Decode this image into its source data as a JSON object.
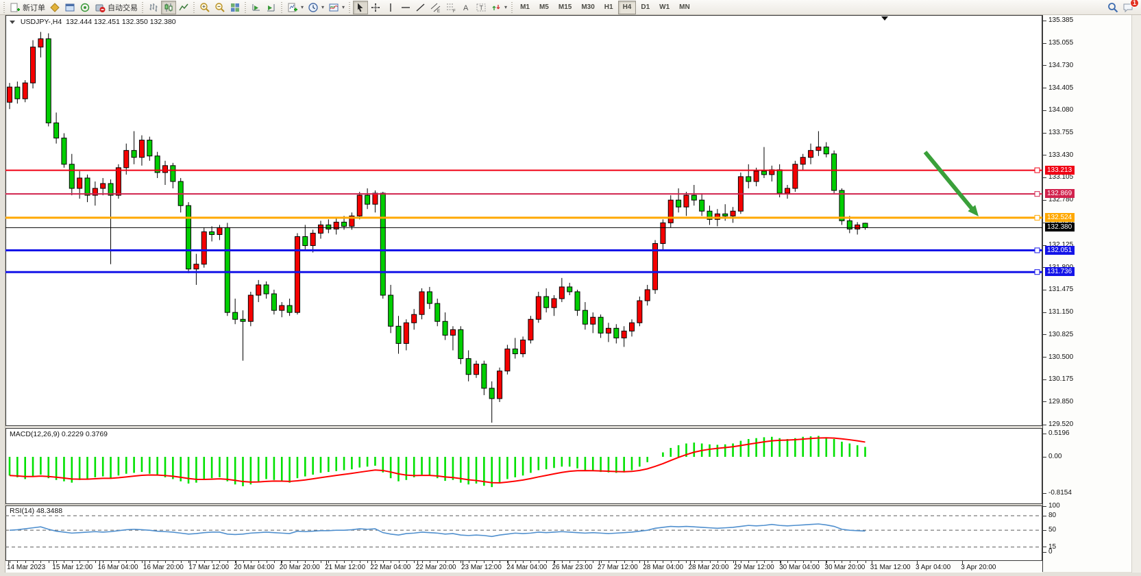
{
  "toolbar": {
    "new_order_label": "新订单",
    "autotrading_label": "自动交易",
    "timeframes": [
      "M1",
      "M5",
      "M15",
      "M30",
      "H1",
      "H4",
      "D1",
      "W1",
      "MN"
    ],
    "active_timeframe": "H4",
    "notification_badge": "1"
  },
  "chart": {
    "title_symbol": "USDJPY-,H4",
    "title_ohlc": "132.444 132.451 132.350 132.380"
  },
  "chart_data": {
    "type": "candlestick",
    "symbol": "USDJPY",
    "period": "H4",
    "y_axis_range": [
      129.52,
      135.385
    ],
    "y_ticks": [
      "135.385",
      "135.055",
      "134.730",
      "134.405",
      "134.080",
      "133.755",
      "133.430",
      "133.105",
      "132.780",
      "132.450",
      "132.125",
      "131.800",
      "131.475",
      "131.150",
      "130.825",
      "130.500",
      "130.175",
      "129.850",
      "129.520"
    ],
    "colors": {
      "up_candle": "#f50000",
      "down_candle": "#00ce00",
      "wick": "#000000",
      "macd_hist": "#00e100",
      "macd_signal": "#ff0000",
      "rsi_line": "#4f8fce",
      "arrow": "#3aa03a",
      "current_price_bg": "#000000"
    },
    "price_levels": [
      {
        "price": 133.213,
        "color": "#f00014",
        "width": 2
      },
      {
        "price": 132.869,
        "color": "#d1234d",
        "width": 2
      },
      {
        "price": 132.524,
        "color": "#ffa800",
        "width": 3
      },
      {
        "price": 132.051,
        "color": "#1414e8",
        "width": 3
      },
      {
        "price": 131.736,
        "color": "#1414e8",
        "width": 3
      }
    ],
    "current_price": {
      "price": 132.38,
      "label": "132.380"
    },
    "candles": [
      [
        134.2,
        134.48,
        134.1,
        134.42
      ],
      [
        134.42,
        134.5,
        134.18,
        134.25
      ],
      [
        134.25,
        134.52,
        134.2,
        134.48
      ],
      [
        134.48,
        135.1,
        134.4,
        135.0
      ],
      [
        135.0,
        135.22,
        134.85,
        135.12
      ],
      [
        135.12,
        135.2,
        133.85,
        133.9
      ],
      [
        133.9,
        134.05,
        133.6,
        133.68
      ],
      [
        133.68,
        133.75,
        133.25,
        133.3
      ],
      [
        133.3,
        133.45,
        132.85,
        132.95
      ],
      [
        132.95,
        133.2,
        132.8,
        133.1
      ],
      [
        133.1,
        133.15,
        132.75,
        132.85
      ],
      [
        132.85,
        133.05,
        132.7,
        132.95
      ],
      [
        132.95,
        133.1,
        132.85,
        133.02
      ],
      [
        133.02,
        133.08,
        131.85,
        132.85
      ],
      [
        132.85,
        133.3,
        132.8,
        133.25
      ],
      [
        133.25,
        133.6,
        133.15,
        133.5
      ],
      [
        133.5,
        133.78,
        133.3,
        133.4
      ],
      [
        133.4,
        133.72,
        133.28,
        133.65
      ],
      [
        133.65,
        133.7,
        133.35,
        133.42
      ],
      [
        133.42,
        133.48,
        133.1,
        133.18
      ],
      [
        133.18,
        133.35,
        133.0,
        133.28
      ],
      [
        133.28,
        133.32,
        132.95,
        133.05
      ],
      [
        133.05,
        133.1,
        132.6,
        132.7
      ],
      [
        132.7,
        132.75,
        131.72,
        131.78
      ],
      [
        131.78,
        132.0,
        131.55,
        131.85
      ],
      [
        131.85,
        132.38,
        131.8,
        132.32
      ],
      [
        132.32,
        132.4,
        132.18,
        132.28
      ],
      [
        132.28,
        132.42,
        132.2,
        132.38
      ],
      [
        132.38,
        132.45,
        131.1,
        131.15
      ],
      [
        131.15,
        131.35,
        130.98,
        131.05
      ],
      [
        131.05,
        131.18,
        130.45,
        131.02
      ],
      [
        131.02,
        131.45,
        130.95,
        131.4
      ],
      [
        131.4,
        131.62,
        131.3,
        131.55
      ],
      [
        131.55,
        131.6,
        131.35,
        131.42
      ],
      [
        131.42,
        131.48,
        131.12,
        131.18
      ],
      [
        131.18,
        131.3,
        131.08,
        131.25
      ],
      [
        131.25,
        131.35,
        131.1,
        131.15
      ],
      [
        131.15,
        132.3,
        131.12,
        132.25
      ],
      [
        132.25,
        132.42,
        132.05,
        132.12
      ],
      [
        132.12,
        132.35,
        132.02,
        132.3
      ],
      [
        132.3,
        132.48,
        132.22,
        132.42
      ],
      [
        132.42,
        132.5,
        132.3,
        132.36
      ],
      [
        132.36,
        132.52,
        132.28,
        132.46
      ],
      [
        132.46,
        132.55,
        132.35,
        132.4
      ],
      [
        132.4,
        132.6,
        132.35,
        132.55
      ],
      [
        132.55,
        132.9,
        132.5,
        132.85
      ],
      [
        132.85,
        132.95,
        132.65,
        132.72
      ],
      [
        132.72,
        132.92,
        132.6,
        132.88
      ],
      [
        132.88,
        132.9,
        131.35,
        131.4
      ],
      [
        131.4,
        131.55,
        130.85,
        130.95
      ],
      [
        130.95,
        131.1,
        130.55,
        130.7
      ],
      [
        130.7,
        131.05,
        130.6,
        131.0
      ],
      [
        131.0,
        131.2,
        130.9,
        131.12
      ],
      [
        131.12,
        131.5,
        131.05,
        131.45
      ],
      [
        131.45,
        131.52,
        131.2,
        131.28
      ],
      [
        131.28,
        131.35,
        130.95,
        131.02
      ],
      [
        131.02,
        131.15,
        130.75,
        130.82
      ],
      [
        130.82,
        130.95,
        130.6,
        130.9
      ],
      [
        130.9,
        130.95,
        130.4,
        130.48
      ],
      [
        130.48,
        130.6,
        130.15,
        130.25
      ],
      [
        130.25,
        130.45,
        130.2,
        130.4
      ],
      [
        130.4,
        130.45,
        129.95,
        130.05
      ],
      [
        130.05,
        130.15,
        129.55,
        129.9
      ],
      [
        129.9,
        130.35,
        129.85,
        130.3
      ],
      [
        130.3,
        130.68,
        130.25,
        130.62
      ],
      [
        130.62,
        130.78,
        130.48,
        130.55
      ],
      [
        130.55,
        130.8,
        130.5,
        130.75
      ],
      [
        130.75,
        131.1,
        130.7,
        131.05
      ],
      [
        131.05,
        131.45,
        131.0,
        131.38
      ],
      [
        131.38,
        131.5,
        131.15,
        131.22
      ],
      [
        131.22,
        131.4,
        131.1,
        131.35
      ],
      [
        131.35,
        131.65,
        131.3,
        131.52
      ],
      [
        131.52,
        131.58,
        131.4,
        131.45
      ],
      [
        131.45,
        131.48,
        131.1,
        131.18
      ],
      [
        131.18,
        131.3,
        130.9,
        130.98
      ],
      [
        130.98,
        131.15,
        130.85,
        131.08
      ],
      [
        131.08,
        131.12,
        130.78,
        130.85
      ],
      [
        130.85,
        131.0,
        130.72,
        130.92
      ],
      [
        130.92,
        130.98,
        130.7,
        130.78
      ],
      [
        130.78,
        130.95,
        130.65,
        130.88
      ],
      [
        130.88,
        131.05,
        130.8,
        131.0
      ],
      [
        131.0,
        131.38,
        130.95,
        131.32
      ],
      [
        131.32,
        131.55,
        131.25,
        131.48
      ],
      [
        131.48,
        132.2,
        131.42,
        132.15
      ],
      [
        132.15,
        132.5,
        132.05,
        132.45
      ],
      [
        132.45,
        132.85,
        132.38,
        132.78
      ],
      [
        132.78,
        132.95,
        132.6,
        132.68
      ],
      [
        132.68,
        132.9,
        132.55,
        132.85
      ],
      [
        132.85,
        133.0,
        132.7,
        132.78
      ],
      [
        132.78,
        132.88,
        132.55,
        132.62
      ],
      [
        132.62,
        132.7,
        132.42,
        132.5
      ],
      [
        132.5,
        132.65,
        132.4,
        132.58
      ],
      [
        132.58,
        132.72,
        132.48,
        132.55
      ],
      [
        132.55,
        132.68,
        132.45,
        132.62
      ],
      [
        132.62,
        133.18,
        132.58,
        133.12
      ],
      [
        133.12,
        133.3,
        132.95,
        133.05
      ],
      [
        133.05,
        133.25,
        132.98,
        133.2
      ],
      [
        133.2,
        133.55,
        133.1,
        133.15
      ],
      [
        133.15,
        133.28,
        133.05,
        133.22
      ],
      [
        133.22,
        133.3,
        132.82,
        132.88
      ],
      [
        132.88,
        133.0,
        132.8,
        132.95
      ],
      [
        132.95,
        133.35,
        132.9,
        133.3
      ],
      [
        133.3,
        133.45,
        133.22,
        133.4
      ],
      [
        133.4,
        133.6,
        133.3,
        133.5
      ],
      [
        133.5,
        133.78,
        133.42,
        133.55
      ],
      [
        133.55,
        133.62,
        133.4,
        133.45
      ],
      [
        133.45,
        133.5,
        132.88,
        132.92
      ],
      [
        132.92,
        132.95,
        132.42,
        132.48
      ],
      [
        132.48,
        132.55,
        132.3,
        132.36
      ],
      [
        132.36,
        132.46,
        132.28,
        132.42
      ],
      [
        132.444,
        132.451,
        132.35,
        132.38
      ]
    ],
    "time_labels": [
      "14 Mar 2023",
      "15 Mar 12:00",
      "16 Mar 04:00",
      "16 Mar 20:00",
      "17 Mar 12:00",
      "20 Mar 04:00",
      "20 Mar 20:00",
      "21 Mar 12:00",
      "22 Mar 04:00",
      "22 Mar 20:00",
      "23 Mar 12:00",
      "24 Mar 04:00",
      "26 Mar 23:00",
      "27 Mar 12:00",
      "28 Mar 04:00",
      "28 Mar 20:00",
      "29 Mar 12:00",
      "30 Mar 04:00",
      "30 Mar 20:00",
      "31 Mar 12:00",
      "3 Apr 04:00",
      "3 Apr 20:00"
    ],
    "macd": {
      "label": "MACD(12,26,9) 0.2229 0.3769",
      "axis": [
        "0.5196",
        "0.00",
        "-0.8154"
      ],
      "main_value": 0.2229,
      "signal_value": 0.3769,
      "values": [
        -0.42,
        -0.46,
        -0.5,
        -0.44,
        -0.4,
        -0.48,
        -0.52,
        -0.55,
        -0.58,
        -0.52,
        -0.5,
        -0.46,
        -0.44,
        -0.48,
        -0.42,
        -0.38,
        -0.36,
        -0.34,
        -0.38,
        -0.42,
        -0.46,
        -0.5,
        -0.55,
        -0.6,
        -0.58,
        -0.52,
        -0.48,
        -0.46,
        -0.55,
        -0.62,
        -0.66,
        -0.62,
        -0.55,
        -0.5,
        -0.52,
        -0.55,
        -0.58,
        -0.48,
        -0.44,
        -0.4,
        -0.36,
        -0.34,
        -0.32,
        -0.3,
        -0.28,
        -0.24,
        -0.22,
        -0.2,
        -0.35,
        -0.48,
        -0.55,
        -0.52,
        -0.46,
        -0.4,
        -0.42,
        -0.48,
        -0.54,
        -0.52,
        -0.58,
        -0.62,
        -0.6,
        -0.65,
        -0.68,
        -0.6,
        -0.5,
        -0.46,
        -0.42,
        -0.36,
        -0.3,
        -0.28,
        -0.25,
        -0.22,
        -0.22,
        -0.26,
        -0.3,
        -0.32,
        -0.34,
        -0.35,
        -0.36,
        -0.35,
        -0.3,
        -0.22,
        -0.12,
        0.0,
        0.1,
        0.2,
        0.26,
        0.3,
        0.32,
        0.3,
        0.28,
        0.27,
        0.28,
        0.3,
        0.36,
        0.4,
        0.42,
        0.44,
        0.45,
        0.42,
        0.4,
        0.42,
        0.45,
        0.46,
        0.47,
        0.44,
        0.4,
        0.34,
        0.3,
        0.26,
        0.2229
      ]
    },
    "rsi": {
      "label": "RSI(14) 48.3488",
      "axis": [
        "100",
        "80",
        "50",
        "15",
        "0"
      ],
      "levels": [
        80,
        50,
        15
      ],
      "value": 48.3488,
      "values": [
        50,
        51,
        53,
        55,
        57,
        52,
        48,
        46,
        44,
        45,
        46,
        47,
        46,
        47,
        49,
        51,
        52,
        51,
        50,
        48,
        47,
        46,
        44,
        42,
        43,
        45,
        46,
        46,
        42,
        41,
        42,
        44,
        45,
        46,
        45,
        44,
        43,
        48,
        47,
        48,
        49,
        49,
        50,
        50,
        51,
        53,
        52,
        53,
        45,
        42,
        40,
        43,
        44,
        46,
        45,
        44,
        42,
        43,
        40,
        39,
        40,
        39,
        37,
        40,
        42,
        44,
        43,
        44,
        46,
        45,
        46,
        47,
        46,
        45,
        44,
        45,
        44,
        43,
        44,
        45,
        46,
        48,
        50,
        54,
        56,
        58,
        57,
        58,
        57,
        56,
        55,
        54,
        55,
        56,
        58,
        60,
        59,
        60,
        62,
        60,
        59,
        60,
        61,
        62,
        63,
        61,
        58,
        52,
        50,
        49,
        48.35
      ]
    },
    "annotation_arrow": {
      "from": [
        1342,
        200
      ],
      "to": [
        1420,
        294
      ]
    }
  }
}
